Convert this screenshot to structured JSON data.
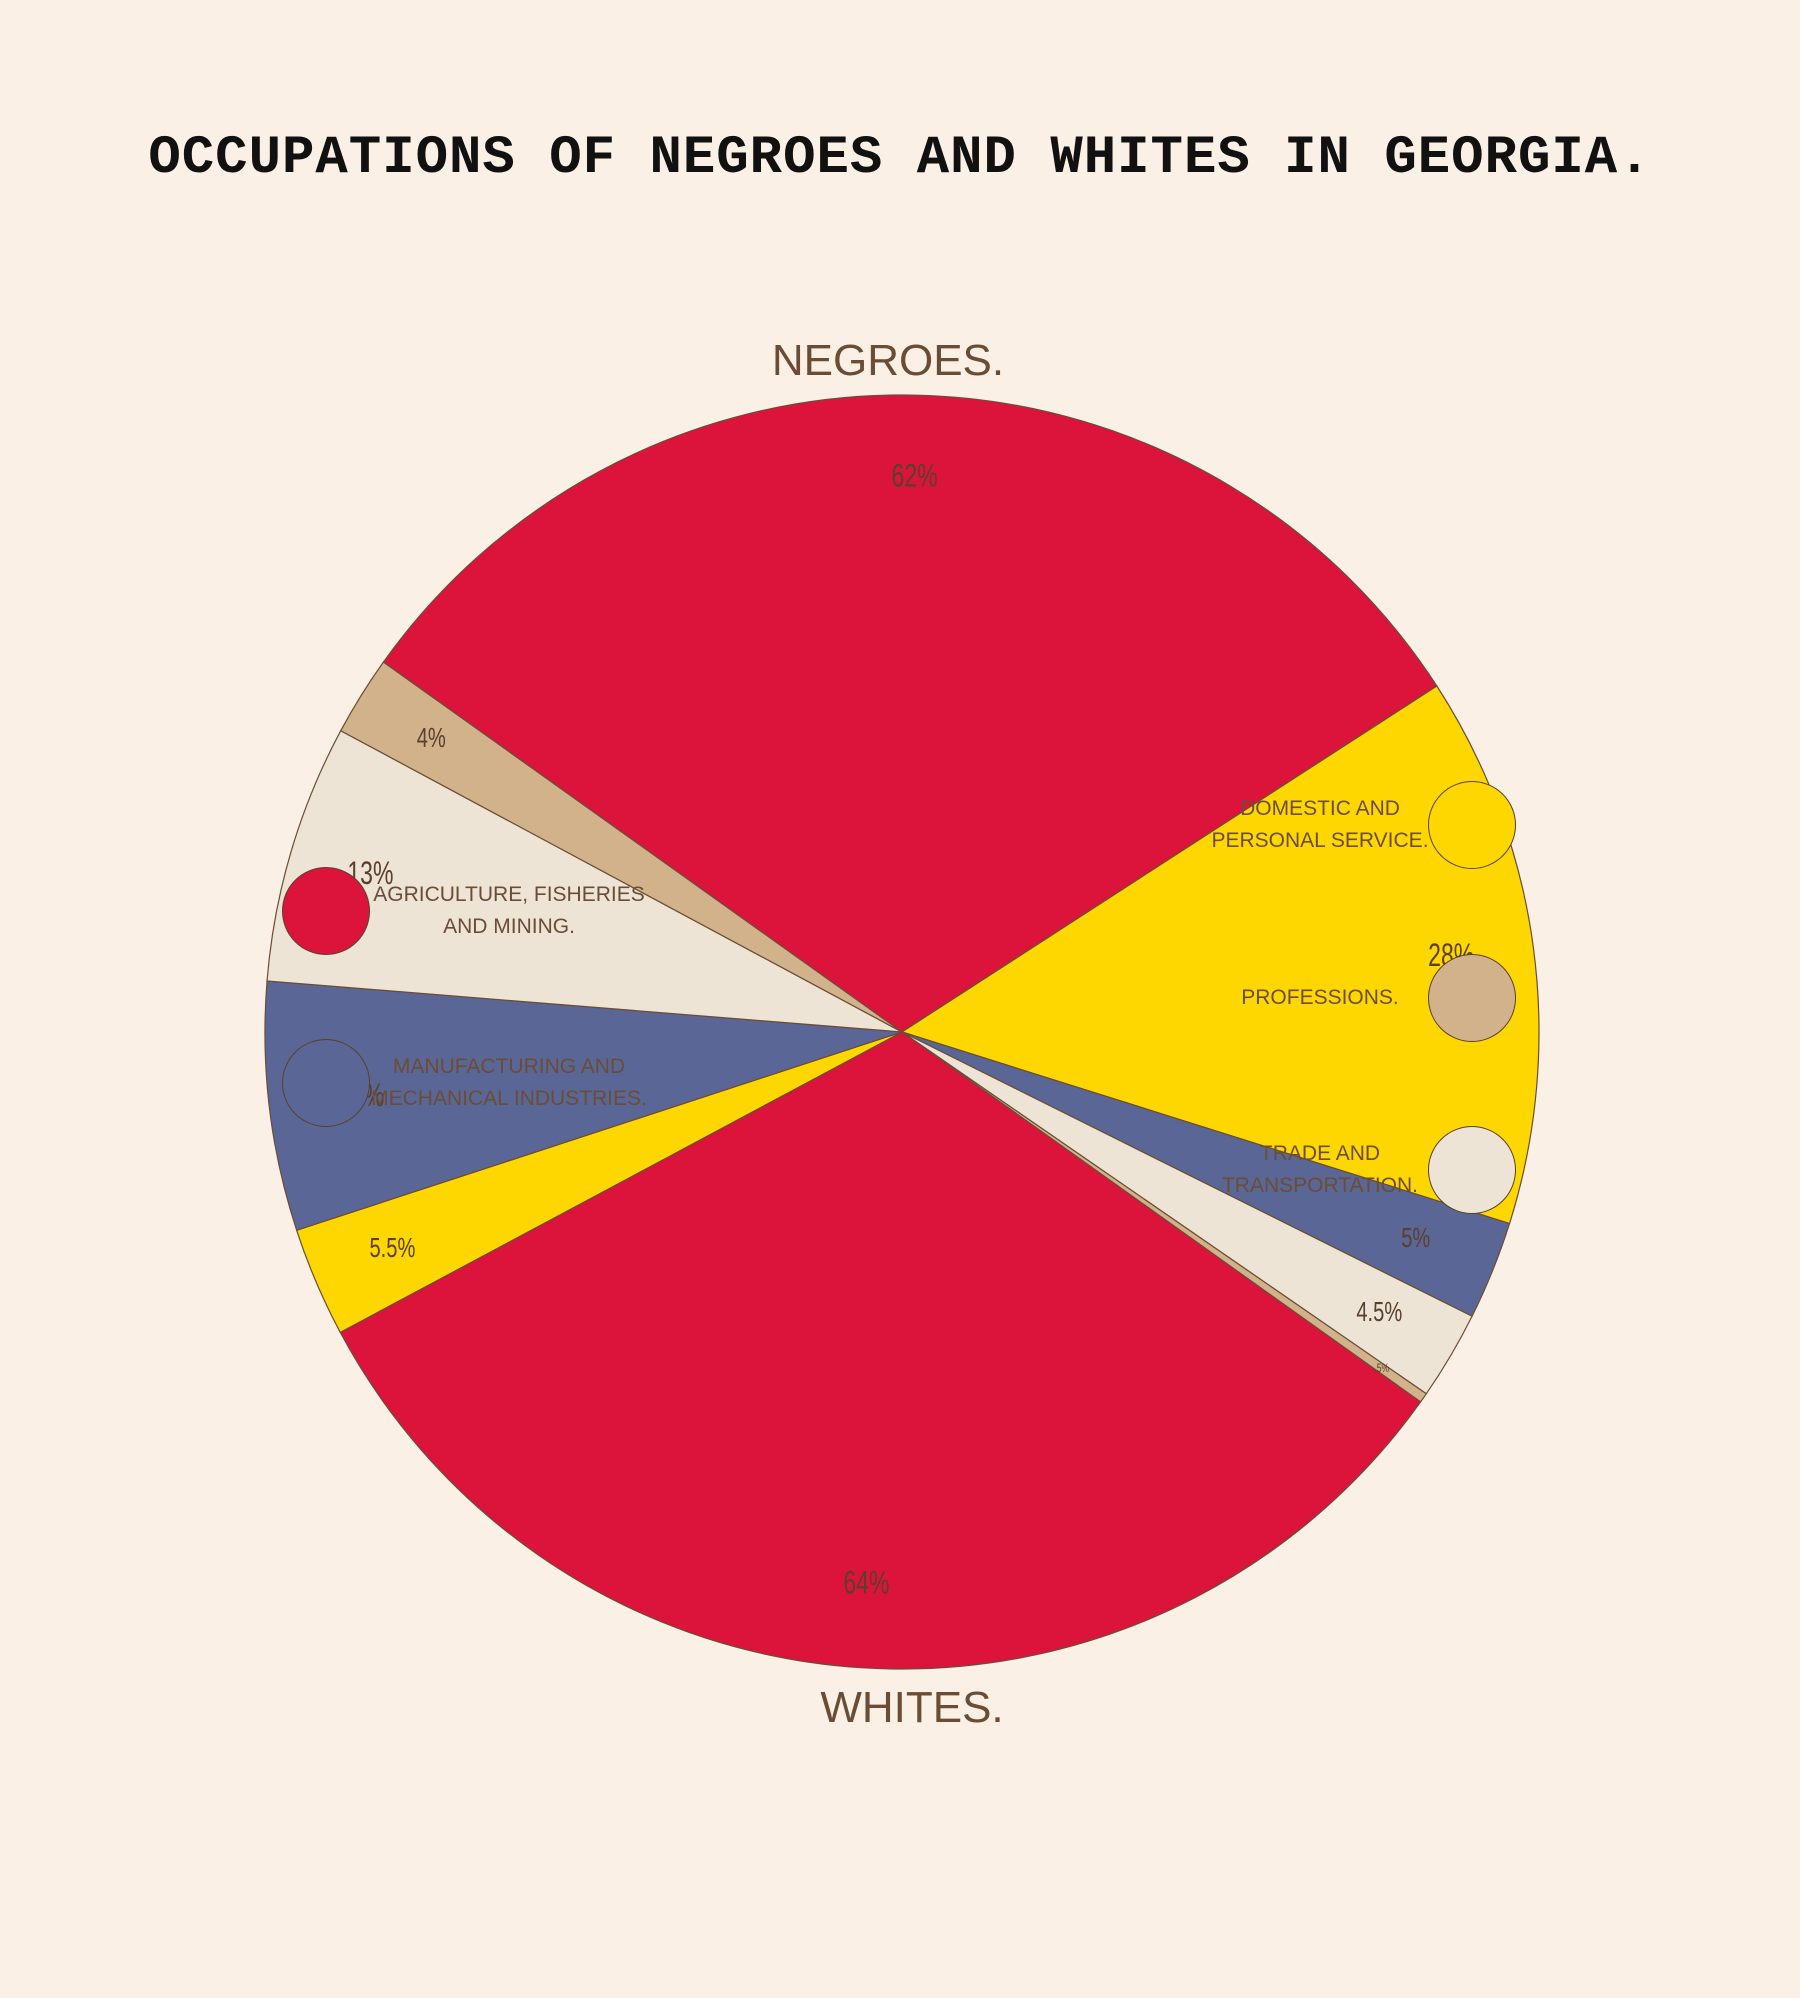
{
  "title": "OCCUPATIONS OF NEGROES AND WHITES IN GEORGIA.",
  "chart_data": {
    "type": "pie",
    "categories": [
      "AGRICULTURE, FISHERIES AND MINING.",
      "DOMESTIC AND PERSONAL SERVICE.",
      "MANUFACTURING AND MECHANICAL INDUSTRIES.",
      "TRADE AND TRANSPORTATION.",
      "PROFESSIONS."
    ],
    "colors": {
      "agriculture": "#dc143c",
      "domestic": "#ffd700",
      "manufacturing": "#5a6796",
      "trade": "#ede4d6",
      "professions": "#d1b28b"
    },
    "series": [
      {
        "name": "NEGROES.",
        "slices": [
          {
            "category": "agriculture",
            "value": 62,
            "label": "62%"
          },
          {
            "category": "domestic",
            "value": 28,
            "label": "28%"
          },
          {
            "category": "manufacturing",
            "value": 5,
            "label": "5%"
          },
          {
            "category": "trade",
            "value": 4.5,
            "label": "4.5%"
          },
          {
            "category": "professions",
            "value": 0.5,
            "label": ".5%"
          }
        ]
      },
      {
        "name": "WHITES.",
        "slices": [
          {
            "category": "agriculture",
            "value": 64,
            "label": "64%"
          },
          {
            "category": "domestic",
            "value": 5.5,
            "label": "5.5%"
          },
          {
            "category": "manufacturing",
            "value": 12.5,
            "label": "12.5%"
          },
          {
            "category": "trade",
            "value": 13,
            "label": "13%"
          },
          {
            "category": "professions",
            "value": 4,
            "label": "4%"
          }
        ]
      }
    ]
  },
  "legend": [
    {
      "key": "agriculture",
      "line1": "AGRICULTURE, FISHERIES",
      "line2": "AND MINING."
    },
    {
      "key": "manufacturing",
      "line1": "MANUFACTURING AND",
      "line2": "MECHANICAL INDUSTRIES."
    },
    {
      "key": "domestic",
      "line1": "DOMESTIC AND",
      "line2": "PERSONAL SERVICE."
    },
    {
      "key": "professions",
      "line1": "PROFESSIONS.",
      "line2": ""
    },
    {
      "key": "trade",
      "line1": "TRADE AND",
      "line2": "TRANSPORTATION."
    }
  ]
}
